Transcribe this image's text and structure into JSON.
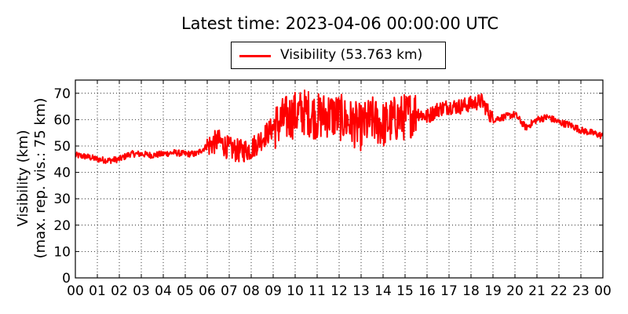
{
  "chart_data": {
    "type": "line",
    "title": "Latest time: 2023-04-06 00:00:00 UTC",
    "ylabel_line1": "Visibility (km)",
    "ylabel_line2": "(max. rep. vis.: 75 km)",
    "ylim": [
      0,
      75
    ],
    "yticks": [
      0,
      10,
      20,
      30,
      40,
      50,
      60,
      70
    ],
    "xlim": [
      0,
      24
    ],
    "xticks": [
      "00",
      "01",
      "02",
      "03",
      "04",
      "05",
      "06",
      "07",
      "08",
      "09",
      "10",
      "11",
      "12",
      "13",
      "14",
      "15",
      "16",
      "17",
      "18",
      "19",
      "20",
      "21",
      "22",
      "23",
      "00"
    ],
    "grid": true,
    "legend_position": "top-center",
    "series": [
      {
        "name": "Visibility (53.763 km)",
        "color": "#ff0000",
        "x_hours": [
          0,
          0.5,
          1,
          1.5,
          2,
          2.5,
          3,
          3.5,
          4,
          4.5,
          5,
          5.5,
          6,
          6.5,
          7,
          7.5,
          8,
          8.5,
          9,
          9.5,
          10,
          10.5,
          11,
          11.5,
          12,
          12.5,
          13,
          13.5,
          14,
          14.5,
          15,
          15.5,
          16,
          16.5,
          17,
          17.5,
          18,
          18.5,
          19,
          19.5,
          20,
          20.5,
          21,
          21.5,
          22,
          22.5,
          23,
          23.5,
          24
        ],
        "values": [
          46.5,
          46,
          45,
          44.5,
          45,
          47,
          47,
          46.5,
          47,
          47.5,
          47,
          47,
          50,
          52,
          49,
          48,
          49,
          53,
          57,
          60,
          62,
          63,
          61,
          62,
          61,
          59,
          57,
          60,
          58,
          60,
          61,
          63,
          61,
          64,
          65,
          65,
          66,
          67,
          60,
          61,
          62,
          57,
          60,
          61,
          59,
          58,
          56,
          55,
          53.8
        ]
      }
    ]
  }
}
